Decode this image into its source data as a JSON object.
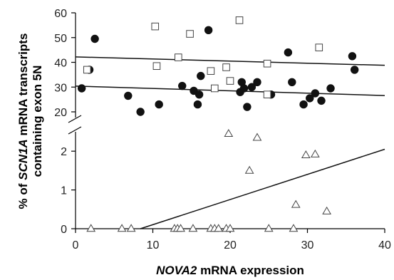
{
  "chart_data": {
    "type": "scatter",
    "xlabel": "NOVA2",
    "xlabel_suffix": " mRNA expression",
    "ylabel_parts": [
      "% of ",
      "SCN1A",
      " mRNA transcripts",
      "containing exon 5N"
    ],
    "xlim": [
      0,
      40
    ],
    "x_ticks": [
      0,
      10,
      20,
      30,
      40
    ],
    "y_upper_ticks": [
      20,
      30,
      40,
      50,
      60
    ],
    "y_lower_ticks": [
      0,
      1,
      2
    ],
    "y_upper_range": [
      20,
      60
    ],
    "y_lower_range": [
      0,
      2.5
    ],
    "broken_y_axis": true,
    "grid": false,
    "series": [
      {
        "marker": "filled-circle",
        "color": "#111111",
        "points": [
          [
            0.8,
            29.5
          ],
          [
            1.8,
            37
          ],
          [
            2.5,
            49.5
          ],
          [
            6.8,
            26.5
          ],
          [
            8.4,
            20
          ],
          [
            10.8,
            23
          ],
          [
            13.8,
            30.5
          ],
          [
            15.3,
            28.5
          ],
          [
            15.8,
            23
          ],
          [
            16,
            27
          ],
          [
            16.2,
            34.5
          ],
          [
            17.2,
            53
          ],
          [
            21.3,
            28
          ],
          [
            21.5,
            32
          ],
          [
            21.8,
            29.5
          ],
          [
            22.2,
            22
          ],
          [
            22.8,
            30
          ],
          [
            23.5,
            32
          ],
          [
            25.3,
            27
          ],
          [
            27.5,
            44
          ],
          [
            28,
            32
          ],
          [
            29.5,
            23
          ],
          [
            30.3,
            25.5
          ],
          [
            31,
            27.5
          ],
          [
            31.8,
            24.5
          ],
          [
            33,
            29.5
          ],
          [
            35.8,
            42.5
          ],
          [
            36.1,
            37
          ]
        ]
      },
      {
        "marker": "open-square",
        "color": "#444444",
        "points": [
          [
            1.5,
            37
          ],
          [
            10.3,
            54.5
          ],
          [
            10.5,
            38.5
          ],
          [
            13.3,
            42
          ],
          [
            14.8,
            51.5
          ],
          [
            17.5,
            36.5
          ],
          [
            18,
            29.5
          ],
          [
            19.5,
            38
          ],
          [
            20,
            32.5
          ],
          [
            21.2,
            57
          ],
          [
            24.8,
            27
          ],
          [
            24.8,
            39.5
          ],
          [
            31.5,
            46
          ]
        ]
      },
      {
        "marker": "open-triangle",
        "color": "#444444",
        "points": [
          [
            2,
            0
          ],
          [
            6,
            0
          ],
          [
            7.2,
            0
          ],
          [
            12.8,
            0
          ],
          [
            13.2,
            0
          ],
          [
            13.6,
            0
          ],
          [
            15.2,
            0
          ],
          [
            17.5,
            0
          ],
          [
            18,
            0
          ],
          [
            18.5,
            0
          ],
          [
            19.5,
            0
          ],
          [
            20,
            0
          ],
          [
            25,
            0
          ],
          [
            28.2,
            0
          ],
          [
            19.8,
            2.45
          ],
          [
            23.5,
            2.35
          ],
          [
            22.5,
            1.5
          ],
          [
            28.5,
            0.62
          ],
          [
            29.8,
            1.9
          ],
          [
            31,
            1.92
          ],
          [
            32.5,
            0.45
          ]
        ]
      }
    ],
    "trendlines": [
      {
        "segment": "upper",
        "x": [
          0,
          40
        ],
        "y": [
          42.2,
          38.8
        ]
      },
      {
        "segment": "upper",
        "x": [
          0,
          40
        ],
        "y": [
          30.4,
          26.6
        ]
      },
      {
        "segment": "lower",
        "x": [
          8.4,
          40
        ],
        "y": [
          0,
          2.05
        ]
      }
    ]
  }
}
